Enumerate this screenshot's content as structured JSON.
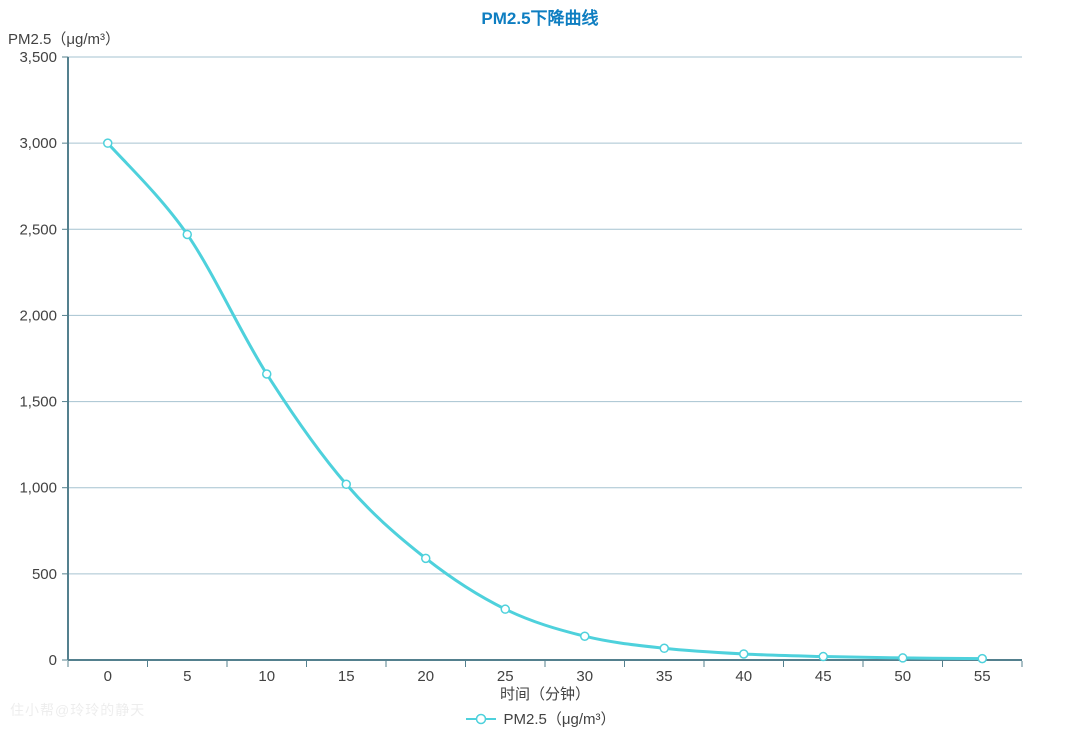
{
  "page": {
    "watermark": "住小帮@玲玲的静天"
  },
  "chart_data": {
    "type": "line",
    "title": "PM2.5下降曲线",
    "xlabel": "时间（分钟）",
    "ylabel": "PM2.5（μg/m³）",
    "categories": [
      "0",
      "5",
      "10",
      "15",
      "20",
      "25",
      "30",
      "35",
      "40",
      "45",
      "50",
      "55"
    ],
    "series": [
      {
        "name": "PM2.5（μg/m³）",
        "values": [
          3000,
          2470,
          1660,
          1020,
          590,
          295,
          138,
          68,
          35,
          20,
          12,
          8
        ]
      }
    ],
    "ylim": [
      0,
      3500
    ],
    "yticks": [
      {
        "value": 0,
        "label": "0"
      },
      {
        "value": 500,
        "label": "500"
      },
      {
        "value": 1000,
        "label": "1,000"
      },
      {
        "value": 1500,
        "label": "1,500"
      },
      {
        "value": 2000,
        "label": "2,000"
      },
      {
        "value": 2500,
        "label": "2,500"
      },
      {
        "value": 3000,
        "label": "3,000"
      },
      {
        "value": 3500,
        "label": "3,500"
      }
    ],
    "grid": true,
    "smooth": true,
    "marker": "hollow-circle",
    "legend_position": "bottom",
    "colors": {
      "line": "#4ed1dc",
      "grid": "#a6c3d1",
      "axis": "#54808e",
      "text": "#424242",
      "title": "#0e7ec1"
    }
  },
  "legend": {
    "items": [
      {
        "label": "PM2.5（μg/m³）",
        "color": "#4ed1dc"
      }
    ]
  }
}
